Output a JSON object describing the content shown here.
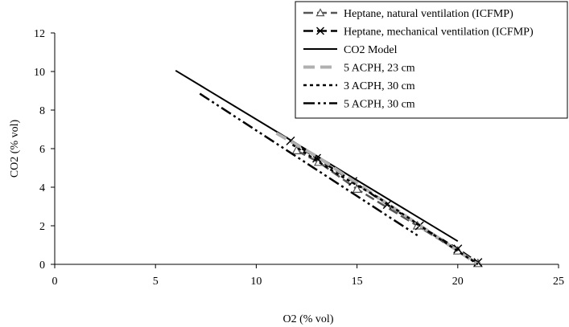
{
  "chart_data": {
    "type": "line",
    "xlabel": "O2 (% vol)",
    "ylabel": "CO2 (% vol)",
    "xlim": [
      0,
      25
    ],
    "ylim": [
      0,
      12
    ],
    "xticks": [
      0,
      5,
      10,
      15,
      20,
      25
    ],
    "yticks": [
      0,
      2,
      4,
      6,
      8,
      10,
      12
    ],
    "xtick_labels": [
      "0",
      "5",
      "10",
      "15",
      "20",
      "25"
    ],
    "ytick_labels": [
      "0",
      "2",
      "4",
      "6",
      "8",
      "10",
      "12"
    ],
    "grid": false,
    "legend_position": "top-right",
    "series": [
      {
        "name": "Heptane, natural ventilation (ICFMP)",
        "color": "#555555",
        "dash": "long-dash",
        "marker": "triangle",
        "x": [
          12.0,
          13.1,
          15.0,
          18.0,
          20.0,
          21.0
        ],
        "y": [
          5.9,
          5.3,
          3.9,
          2.0,
          0.7,
          0.05
        ]
      },
      {
        "name": "Heptane, mechanical ventilation (ICFMP)",
        "color": "#000000",
        "dash": "long-dash",
        "marker": "x",
        "x": [
          11.7,
          13.0,
          14.8,
          16.5,
          18.1,
          20.0,
          21.0
        ],
        "y": [
          6.4,
          5.5,
          4.3,
          3.1,
          2.0,
          0.8,
          0.1
        ]
      },
      {
        "name": "CO2 Model",
        "color": "#000000",
        "dash": "solid",
        "marker": "none",
        "x": [
          6.0,
          20.0
        ],
        "y": [
          10.05,
          1.2
        ]
      },
      {
        "name": "5 ACPH, 23 cm",
        "color": "#b0b0b0",
        "dash": "thick-dash",
        "marker": "none",
        "x": [
          11.0,
          13.0,
          15.0,
          17.0,
          19.0,
          21.0
        ],
        "y": [
          6.8,
          5.6,
          4.2,
          2.8,
          1.4,
          0.0
        ]
      },
      {
        "name": "3 ACPH, 30 cm",
        "color": "#000000",
        "dash": "dotted",
        "marker": "none",
        "x": [
          11.8,
          14.0,
          16.0,
          18.0,
          19.7,
          21.0
        ],
        "y": [
          6.2,
          4.7,
          3.5,
          2.1,
          0.9,
          0.0
        ]
      },
      {
        "name": "5 ACPH, 30 cm",
        "color": "#000000",
        "dash": "dash-dot-dot",
        "marker": "none",
        "x": [
          7.2,
          18.0
        ],
        "y": [
          8.85,
          1.5
        ]
      }
    ]
  }
}
